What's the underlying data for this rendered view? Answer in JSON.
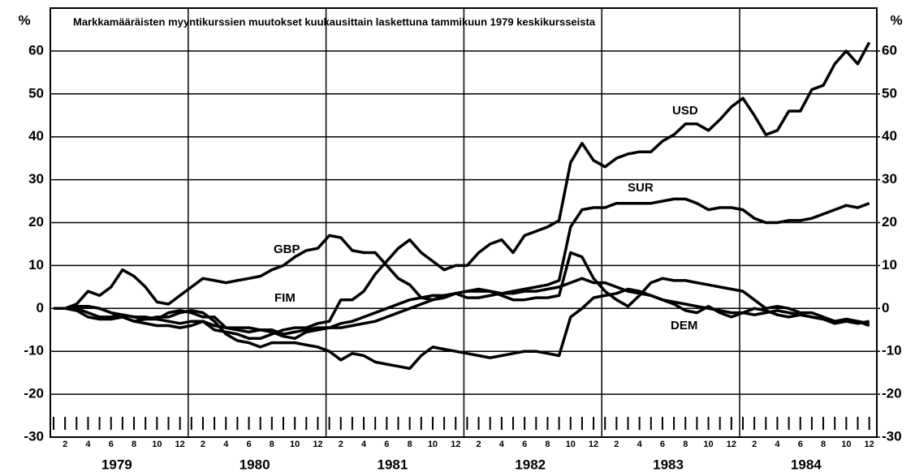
{
  "chart_data": {
    "type": "line",
    "title": "Markkamääräisten myyntikurssien muutokset kuukausittain laskettuna tammikuun 1979 keskikursseista",
    "y_label": "%",
    "y2_label": "%",
    "categories": [
      null,
      "2",
      null,
      "4",
      null,
      "6",
      null,
      "8",
      null,
      "10",
      null,
      "12",
      null,
      "2",
      null,
      "4",
      null,
      "6",
      null,
      "8",
      null,
      "10",
      null,
      "12",
      null,
      "2",
      null,
      "4",
      null,
      "6",
      null,
      "8",
      null,
      "10",
      null,
      "12",
      null,
      "2",
      null,
      "4",
      null,
      "6",
      null,
      "8",
      null,
      "10",
      null,
      "12",
      null,
      "2",
      null,
      "4",
      null,
      "6",
      null,
      "8",
      null,
      "10",
      null,
      "12",
      null,
      "2",
      null,
      "4",
      null,
      "6",
      null,
      "8",
      null,
      "10",
      null,
      "12"
    ],
    "years": [
      1979,
      1980,
      1981,
      1982,
      1983,
      1984
    ],
    "ylim": [
      -30,
      70
    ],
    "yticks": [
      -30,
      -20,
      -10,
      0,
      10,
      20,
      30,
      40,
      50,
      60
    ],
    "y2lim": [
      -30,
      70
    ],
    "y2ticks": [
      -30,
      -20,
      -10,
      0,
      10,
      20,
      30,
      40,
      50,
      60
    ],
    "grid": true,
    "series": [
      {
        "name": "USD",
        "color": "#000000",
        "values": [
          0,
          0,
          -0.5,
          -2,
          -2.5,
          -2.5,
          -2,
          -3,
          -3.5,
          -4,
          -4,
          -4.5,
          -4,
          -3,
          -5,
          -5.5,
          -6,
          -7,
          -7,
          -6,
          -5,
          -4.5,
          -4.5,
          -3.5,
          -3,
          2,
          2,
          4,
          8,
          11,
          14,
          16,
          13,
          11,
          9,
          10,
          10,
          13,
          15,
          16,
          13,
          17,
          18,
          19,
          20.5,
          34,
          38.5,
          34.5,
          33,
          35,
          36,
          36.5,
          36.5,
          39,
          40.5,
          43,
          43,
          41.5,
          44,
          47,
          49,
          45,
          40.5,
          41.5,
          46,
          46,
          51,
          52,
          57,
          60,
          57,
          62
        ]
      },
      {
        "name": "SUR",
        "color": "#000000",
        "values": [
          0,
          0,
          0,
          0.5,
          0,
          -1,
          -1.5,
          -2,
          -2,
          -2.5,
          -3,
          -3.5,
          -3,
          -3,
          -4,
          -4.5,
          -5,
          -5.5,
          -5,
          -5.5,
          -6.5,
          -7,
          -5.5,
          -5,
          -4.5,
          -4.5,
          -4,
          -3.5,
          -3,
          -2,
          -1,
          0,
          1,
          2,
          3,
          3.5,
          4,
          4.5,
          4,
          3.5,
          4,
          4.5,
          5,
          5.5,
          6.5,
          19,
          23,
          23.5,
          23.5,
          24.5,
          24.5,
          24.5,
          24.5,
          25,
          25.5,
          25.5,
          24.5,
          23,
          23.5,
          23.5,
          23,
          21,
          20,
          20,
          20.5,
          20.5,
          21,
          22,
          23,
          24,
          23.5,
          24.5
        ]
      },
      {
        "name": "GBP",
        "color": "#000000",
        "values": [
          0,
          0,
          1,
          4,
          3,
          5,
          9,
          7.5,
          5,
          1.5,
          1,
          3,
          5,
          7,
          6.5,
          6,
          6.5,
          7,
          7.5,
          9,
          10,
          12,
          13.5,
          14,
          17,
          16.5,
          13.5,
          13,
          13,
          10,
          7,
          5.5,
          2.5,
          2,
          2.5,
          3.5,
          2.5,
          2.5,
          3,
          3.5,
          3.5,
          4,
          4,
          4.5,
          5,
          6,
          7,
          6,
          6,
          5,
          4,
          3.5,
          3,
          2,
          1.5,
          1,
          0.5,
          0,
          -0.5,
          -1,
          -1,
          -1.5,
          -1,
          -0.5,
          -1,
          -1.5,
          -2,
          -2.5,
          -3,
          -3,
          -3.5,
          -3
        ]
      },
      {
        "name": "FIM",
        "color": "#000000",
        "values": [
          0,
          0,
          0,
          -1,
          -2,
          -2,
          -1.5,
          -2,
          -2.5,
          -2,
          -2,
          -1,
          -0.5,
          -1,
          -3,
          -6,
          -7.5,
          -8,
          -9,
          -8,
          -8,
          -8,
          -8.5,
          -9,
          -10,
          -12,
          -10.5,
          -11,
          -12.5,
          -13,
          -13.5,
          -14,
          -11,
          -9,
          -9.5,
          -10,
          -10.5,
          -11,
          -11.5,
          -11,
          -10.5,
          -10,
          -10,
          -10.5,
          -11,
          -2,
          0,
          2.5,
          3,
          3.5,
          4.5,
          4,
          3,
          2,
          1,
          -0.5,
          -1,
          0.5,
          -1,
          -2,
          -1,
          0,
          -0.5,
          -1.5,
          -2,
          -1.5,
          -2,
          -2.5,
          -3.5,
          -3,
          -3,
          -4
        ]
      },
      {
        "name": "DEM",
        "color": "#000000",
        "values": [
          0,
          0,
          0.5,
          0.5,
          0,
          -1,
          -2,
          -3,
          -2.5,
          -2.5,
          -1,
          -0.5,
          -1,
          -2,
          -2,
          -4.5,
          -4.5,
          -4.5,
          -5,
          -5,
          -6,
          -5.5,
          -5,
          -4.5,
          -4.5,
          -3.5,
          -3,
          -2,
          -1,
          0,
          1,
          2,
          2.5,
          3,
          3,
          3.5,
          4,
          4,
          4,
          3,
          2,
          2,
          2.5,
          2.5,
          3,
          13,
          12,
          7,
          4,
          2,
          0.5,
          3,
          6,
          7,
          6.5,
          6.5,
          6,
          5.5,
          5,
          4.5,
          4,
          2,
          0,
          0.5,
          0,
          -1,
          -1,
          -2,
          -3,
          -2.5,
          -3,
          -3.5
        ]
      }
    ]
  }
}
